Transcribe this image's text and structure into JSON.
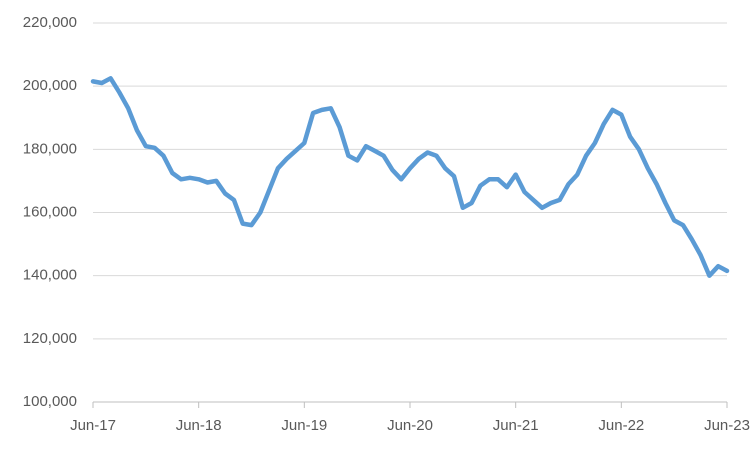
{
  "chart_data": {
    "type": "line",
    "categories": [
      "Jun-17",
      null,
      null,
      null,
      null,
      null,
      null,
      null,
      null,
      null,
      null,
      null,
      "Jun-18",
      null,
      null,
      null,
      null,
      null,
      null,
      null,
      null,
      null,
      null,
      null,
      "Jun-19",
      null,
      null,
      null,
      null,
      null,
      null,
      null,
      null,
      null,
      null,
      null,
      "Jun-20",
      null,
      null,
      null,
      null,
      null,
      null,
      null,
      null,
      null,
      null,
      null,
      "Jun-21",
      null,
      null,
      null,
      null,
      null,
      null,
      null,
      null,
      null,
      null,
      null,
      "Jun-22",
      null,
      null,
      null,
      null,
      null,
      null,
      null,
      null,
      null,
      null,
      null,
      "Jun-23"
    ],
    "series": [
      {
        "color": "#5b9bd5",
        "values": [
          201500,
          201000,
          202500,
          198000,
          193000,
          186000,
          181000,
          180500,
          178000,
          172500,
          170500,
          171000,
          170500,
          169500,
          170000,
          166000,
          164000,
          156500,
          156000,
          160000,
          167000,
          174000,
          177000,
          179500,
          182000,
          191500,
          192500,
          193000,
          187000,
          178000,
          176500,
          181000,
          179500,
          178000,
          173500,
          170500,
          174000,
          177000,
          179000,
          178000,
          174000,
          171500,
          161500,
          163000,
          168500,
          170500,
          170500,
          168000,
          172000,
          166500,
          164000,
          161500,
          163000,
          164000,
          169000,
          172000,
          178000,
          182000,
          188000,
          192500,
          191000,
          184000,
          180000,
          174000,
          169000,
          163000,
          157500,
          156000,
          151500,
          146500,
          140000,
          143000,
          141500
        ]
      }
    ],
    "ylim": [
      100000,
      220000
    ],
    "yticks": [
      {
        "value": 100000,
        "label": "100,000"
      },
      {
        "value": 120000,
        "label": "120,000"
      },
      {
        "value": 140000,
        "label": "140,000"
      },
      {
        "value": 160000,
        "label": "160,000"
      },
      {
        "value": 180000,
        "label": "180,000"
      },
      {
        "value": 200000,
        "label": "200,000"
      },
      {
        "value": 220000,
        "label": "220,000"
      }
    ],
    "grid": true
  }
}
